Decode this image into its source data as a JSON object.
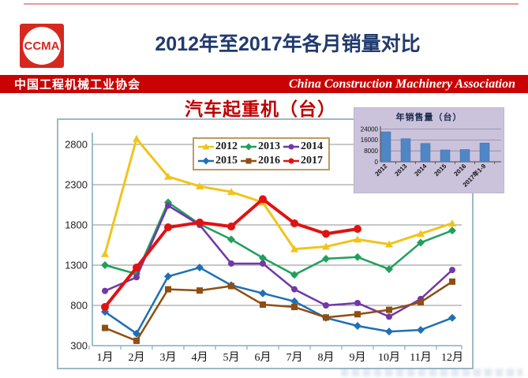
{
  "header": {
    "logo_text": "CCMA",
    "main_title": "2012年至2017年各月销量对比",
    "banner": {
      "left": "中国工程机械工业协会",
      "right": "China Construction Machinery Association",
      "bg_color": "#c90303"
    }
  },
  "chart_data": [
    {
      "type": "line",
      "title": "汽车起重机（台）",
      "title_color": "#c00000",
      "categories": [
        "1月",
        "2月",
        "3月",
        "4月",
        "5月",
        "6月",
        "7月",
        "8月",
        "9月",
        "10月",
        "11月",
        "12月"
      ],
      "yticks": [
        300,
        800,
        1300,
        1800,
        2300,
        2800
      ],
      "ylim": [
        300,
        2950
      ],
      "grid": true,
      "legend_position": "top-center",
      "series": [
        {
          "name": "2012",
          "color": "#f0c41c",
          "marker": "triangle",
          "width": 3,
          "values": [
            1440,
            2870,
            2400,
            2280,
            2210,
            2080,
            1500,
            1530,
            1620,
            1560,
            1690,
            1820
          ]
        },
        {
          "name": "2013",
          "color": "#1fa05c",
          "marker": "diamond",
          "width": 2.5,
          "values": [
            1300,
            1190,
            2080,
            1810,
            1620,
            1390,
            1180,
            1380,
            1400,
            1250,
            1580,
            1730
          ]
        },
        {
          "name": "2014",
          "color": "#7038a8",
          "marker": "circle",
          "width": 2.5,
          "values": [
            980,
            1150,
            2040,
            1800,
            1320,
            1320,
            1000,
            800,
            830,
            660,
            880,
            1240
          ]
        },
        {
          "name": "2015",
          "color": "#1f6fb5",
          "marker": "diamond",
          "width": 2.5,
          "values": [
            720,
            450,
            1160,
            1270,
            1050,
            950,
            850,
            645,
            545,
            475,
            495,
            645
          ]
        },
        {
          "name": "2016",
          "color": "#8f4e12",
          "marker": "square",
          "width": 2.5,
          "values": [
            520,
            360,
            1000,
            985,
            1040,
            810,
            780,
            650,
            690,
            745,
            840,
            1095
          ]
        },
        {
          "name": "2017",
          "color": "#e01212",
          "marker": "circle",
          "width": 4,
          "values": [
            780,
            1270,
            1770,
            1830,
            1780,
            2120,
            1820,
            1690,
            1750
          ]
        }
      ]
    },
    {
      "type": "bar",
      "title": "年销售量（台）",
      "categories": [
        "2012",
        "2013",
        "2014",
        "2015",
        "2016",
        "2017年1-9"
      ],
      "values": [
        22000,
        17000,
        13500,
        8700,
        9000,
        13800
      ],
      "yticks": [
        0,
        8000,
        16000,
        24000
      ],
      "ylim": [
        0,
        26000
      ],
      "bar_color": "#4f86c6",
      "background": "#cbc3dc",
      "grid": true
    }
  ]
}
